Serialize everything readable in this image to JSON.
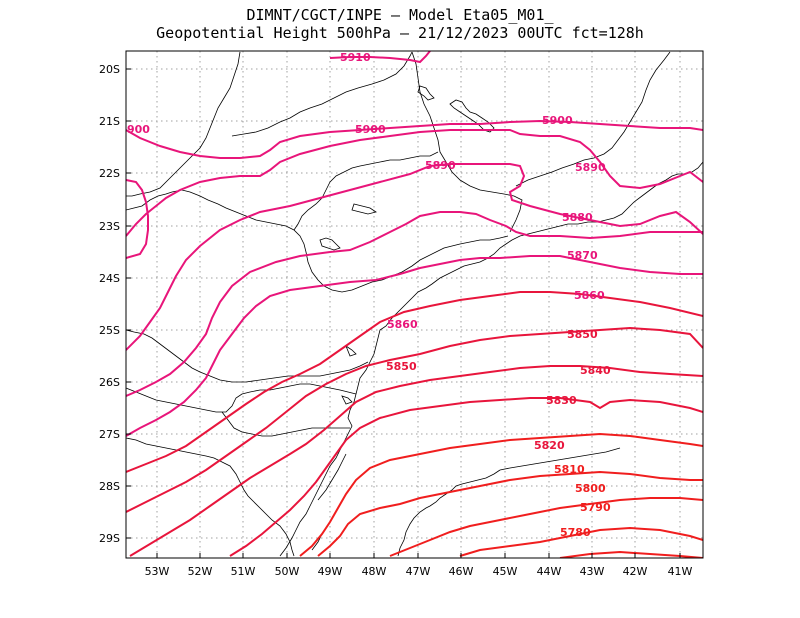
{
  "header": {
    "title_line1": "DIMNT/CGCT/INPE –  Model Eta05_M01_",
    "title_line2": "Geopotential Height 500hPa –  21/12/2023 00UTC fct=128h"
  },
  "axes": {
    "lon_labels": [
      "53W",
      "52W",
      "51W",
      "50W",
      "49W",
      "48W",
      "47W",
      "46W",
      "45W",
      "44W",
      "43W",
      "42W",
      "41W"
    ],
    "lat_labels": [
      "20S",
      "21S",
      "22S",
      "23S",
      "24S",
      "25S",
      "26S",
      "27S",
      "28S",
      "29S"
    ]
  },
  "colors": {
    "magenta": "#e8157a",
    "crimson": "#e8153c",
    "red": "#f01e1e",
    "coast": "#000000",
    "grid": "#a0a0a0"
  },
  "contours": [
    {
      "label": "5910"
    },
    {
      "label": "5900"
    },
    {
      "label": "5890"
    },
    {
      "label": "5880"
    },
    {
      "label": "5870"
    },
    {
      "label": "5860"
    },
    {
      "label": "5850"
    },
    {
      "label": "5840"
    },
    {
      "label": "5830"
    },
    {
      "label": "5820"
    },
    {
      "label": "5810"
    },
    {
      "label": "5800"
    },
    {
      "label": "5790"
    },
    {
      "label": "5780"
    }
  ],
  "edge_label": "900"
}
